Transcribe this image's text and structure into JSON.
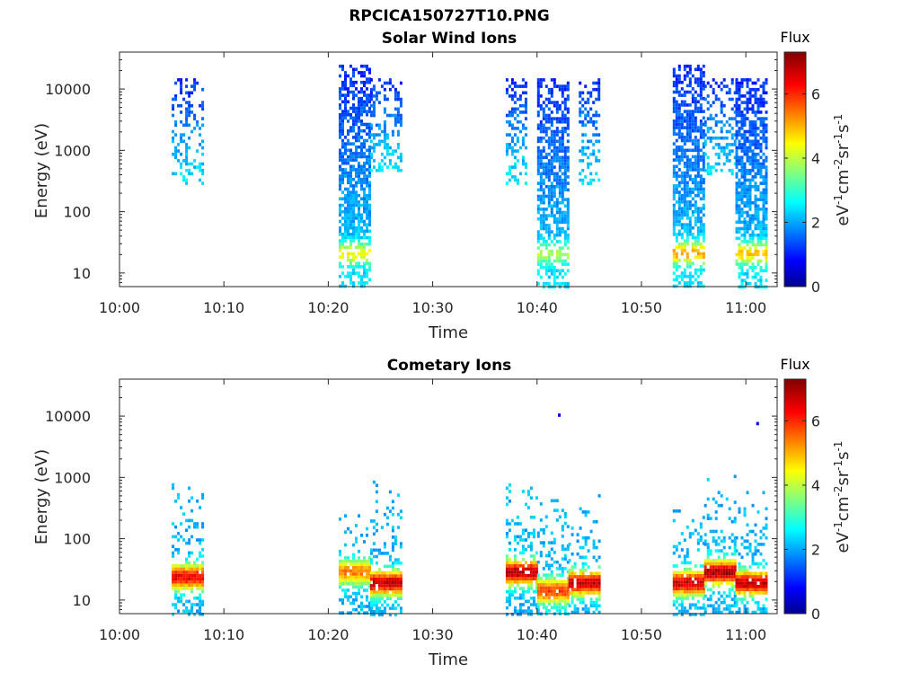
{
  "figure_title": "RPCICA150727T10.PNG",
  "chart_data": [
    {
      "type": "heatmap",
      "title": "Solar Wind Ions",
      "xlabel": "Time",
      "ylabel": "Energy (eV)",
      "x_ticks": [
        "10:00",
        "10:10",
        "10:20",
        "10:30",
        "10:40",
        "10:50",
        "11:00"
      ],
      "x_range_minutes": [
        0,
        63
      ],
      "y_scale": "log",
      "y_range": [
        6,
        40000
      ],
      "y_ticks": [
        "10",
        "100",
        "1000",
        "10000"
      ],
      "y_tick_values": [
        10,
        100,
        1000,
        10000
      ],
      "colorbar": {
        "label": "Flux",
        "unit": "eV-1cm-2sr-1s-1",
        "range": [
          0,
          7.3
        ],
        "ticks": [
          "0",
          "2",
          "4",
          "6"
        ],
        "colormap": "jet"
      },
      "bursts": [
        {
          "start": "10:05",
          "end": "10:08",
          "emin": 300,
          "emax": 15000,
          "flux_peak": 2.2
        },
        {
          "start": "10:21",
          "end": "10:24",
          "emin": 6,
          "emax": 25000,
          "flux_peak": 4.8
        },
        {
          "start": "10:24",
          "end": "10:27",
          "emin": 500,
          "emax": 15000,
          "flux_peak": 1.8
        },
        {
          "start": "10:37",
          "end": "10:39",
          "emin": 300,
          "emax": 15000,
          "flux_peak": 1.6
        },
        {
          "start": "10:40",
          "end": "10:43",
          "emin": 6,
          "emax": 15000,
          "flux_peak": 4.2
        },
        {
          "start": "10:44",
          "end": "10:46",
          "emin": 300,
          "emax": 15000,
          "flux_peak": 1.8
        },
        {
          "start": "10:53",
          "end": "10:56",
          "emin": 6,
          "emax": 25000,
          "flux_peak": 5.5
        },
        {
          "start": "10:56",
          "end": "10:59",
          "emin": 400,
          "emax": 15000,
          "flux_peak": 1.8
        },
        {
          "start": "10:59",
          "end": "11:02",
          "emin": 6,
          "emax": 15000,
          "flux_peak": 5.2
        }
      ]
    },
    {
      "type": "heatmap",
      "title": "Cometary Ions",
      "xlabel": "Time",
      "ylabel": "Energy (eV)",
      "x_ticks": [
        "10:00",
        "10:10",
        "10:20",
        "10:30",
        "10:40",
        "10:50",
        "11:00"
      ],
      "x_range_minutes": [
        0,
        63
      ],
      "y_scale": "log",
      "y_range": [
        6,
        40000
      ],
      "y_ticks": [
        "10",
        "100",
        "1000",
        "10000"
      ],
      "y_tick_values": [
        10,
        100,
        1000,
        10000
      ],
      "colorbar": {
        "label": "Flux",
        "unit": "eV-1cm-2sr-1s-1",
        "range": [
          0,
          7.3
        ],
        "ticks": [
          "0",
          "2",
          "4",
          "6"
        ],
        "colormap": "jet"
      },
      "bursts": [
        {
          "start": "10:05",
          "end": "10:08",
          "emin": 6,
          "emax": 800,
          "peak_energy": 25,
          "flux_peak": 6.5
        },
        {
          "start": "10:21",
          "end": "10:24",
          "emin": 6,
          "emax": 250,
          "peak_energy": 30,
          "flux_peak": 5.5
        },
        {
          "start": "10:24",
          "end": "10:27",
          "emin": 6,
          "emax": 1000,
          "peak_energy": 20,
          "flux_peak": 6.8
        },
        {
          "start": "10:37",
          "end": "10:40",
          "emin": 6,
          "emax": 800,
          "peak_energy": 30,
          "flux_peak": 7.0
        },
        {
          "start": "10:40",
          "end": "10:43",
          "emin": 6,
          "emax": 500,
          "peak_energy": 15,
          "flux_peak": 6.0
        },
        {
          "start": "10:43",
          "end": "10:46",
          "emin": 6,
          "emax": 600,
          "peak_energy": 20,
          "flux_peak": 6.8
        },
        {
          "start": "10:53",
          "end": "10:56",
          "emin": 6,
          "emax": 300,
          "peak_energy": 20,
          "flux_peak": 6.8
        },
        {
          "start": "10:56",
          "end": "10:59",
          "emin": 6,
          "emax": 1100,
          "peak_energy": 30,
          "flux_peak": 7.0
        },
        {
          "start": "10:59",
          "end": "11:02",
          "emin": 6,
          "emax": 600,
          "peak_energy": 20,
          "flux_peak": 6.8
        }
      ],
      "isolated_points": [
        {
          "time": "10:42",
          "energy": 11000,
          "flux": 0.8
        },
        {
          "time": "11:01",
          "energy": 8000,
          "flux": 0.8
        }
      ]
    }
  ]
}
